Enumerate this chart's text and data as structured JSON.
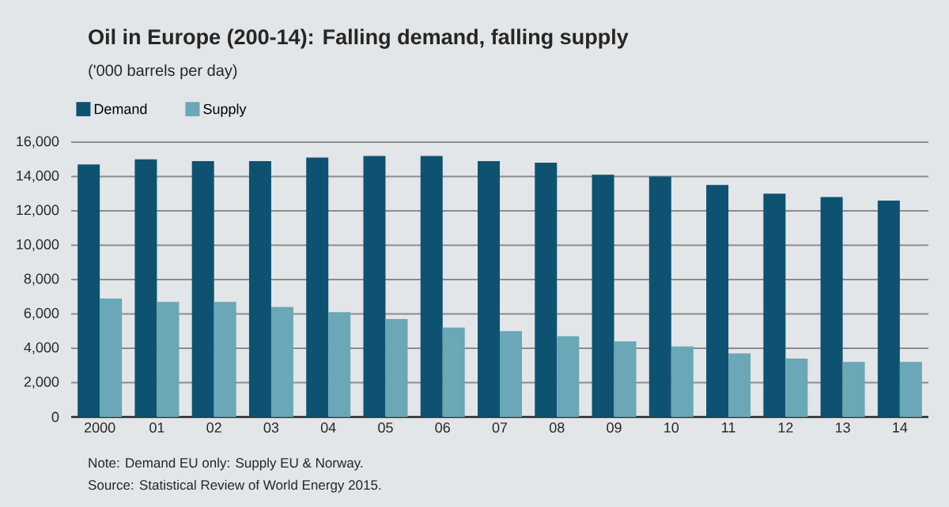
{
  "chart_data": {
    "type": "bar",
    "title": "Oil in Europe (200-14): Falling demand, falling supply",
    "subtitle": "('000 barrels per day)",
    "categories": [
      "2000",
      "01",
      "02",
      "03",
      "04",
      "05",
      "06",
      "07",
      "08",
      "09",
      "10",
      "11",
      "12",
      "13",
      "14"
    ],
    "series": [
      {
        "name": "Demand",
        "color": "#0e5272",
        "values": [
          14700,
          15000,
          14900,
          14900,
          15100,
          15200,
          15200,
          14900,
          14800,
          14100,
          14000,
          13500,
          13000,
          12800,
          12600
        ]
      },
      {
        "name": "Supply",
        "color": "#6aa7b7",
        "values": [
          6900,
          6700,
          6700,
          6400,
          6100,
          5700,
          5200,
          5000,
          4700,
          4400,
          4100,
          3700,
          3400,
          3200,
          3200
        ]
      }
    ],
    "ylim": [
      0,
      16000
    ],
    "yticks": [
      0,
      {
        "value": 2000,
        "label": "2,000"
      },
      {
        "value": 4000,
        "label": "4,000"
      },
      {
        "value": 6000,
        "label": "6,000"
      },
      {
        "value": 8000,
        "label": "8,000"
      },
      {
        "value": 10000,
        "label": "10,000"
      },
      {
        "value": 12000,
        "label": "12,000"
      },
      {
        "value": 14000,
        "label": "14,000"
      },
      {
        "value": 16000,
        "label": "16,000"
      }
    ],
    "grid": "y",
    "legend": "top left",
    "annotations": [
      "Note: Demand EU only: Supply EU & Norway.",
      "Source: Statistical Review of World Energy 2015."
    ]
  }
}
